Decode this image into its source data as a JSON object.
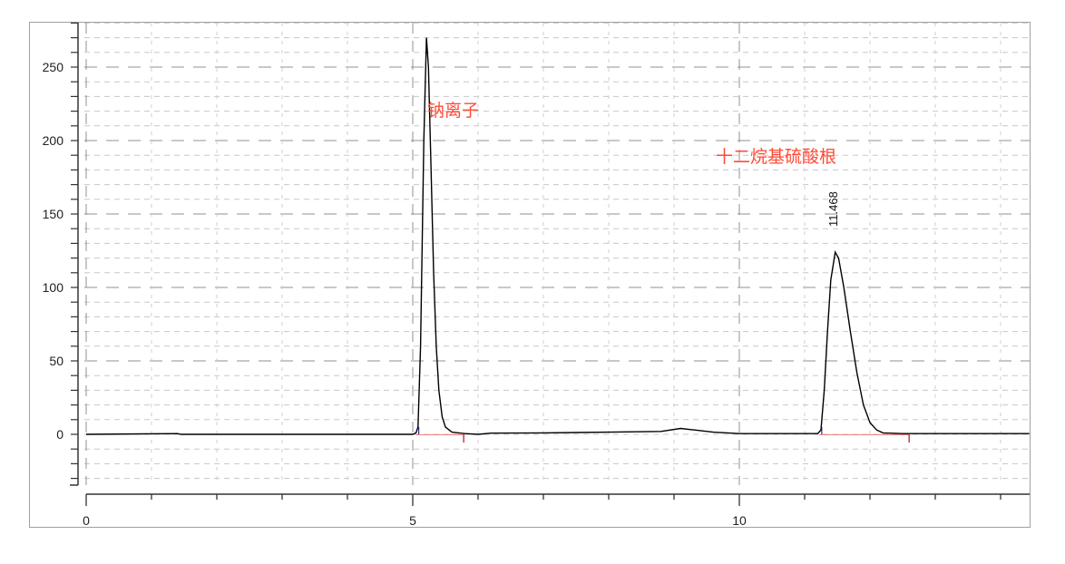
{
  "chart_data": {
    "type": "line",
    "title": "",
    "xlabel": "",
    "ylabel": "",
    "xlim": [
      0,
      14.44
    ],
    "ylim": [
      -34,
      280
    ],
    "x_ticks": [
      "0",
      "5",
      "10"
    ],
    "y_ticks": [
      "0",
      "50",
      "100",
      "150",
      "200",
      "250"
    ],
    "grid": true,
    "colors": {
      "trace": "#000000",
      "annotation": "#ff4a35",
      "baseline": "#f08080",
      "peak_start": "#2030a0",
      "peak_end": "#c0404a"
    },
    "series": [
      {
        "points": [
          [
            0,
            0
          ],
          [
            1.4,
            0.5
          ],
          [
            1.45,
            0
          ],
          [
            5.0,
            0
          ],
          [
            5.05,
            1
          ],
          [
            5.08,
            5
          ],
          [
            5.12,
            60
          ],
          [
            5.17,
            200
          ],
          [
            5.21,
            270
          ],
          [
            5.24,
            250
          ],
          [
            5.28,
            180
          ],
          [
            5.32,
            110
          ],
          [
            5.36,
            60
          ],
          [
            5.4,
            30
          ],
          [
            5.45,
            12
          ],
          [
            5.5,
            5
          ],
          [
            5.6,
            1.5
          ],
          [
            5.8,
            0.5
          ],
          [
            6.0,
            0
          ],
          [
            6.2,
            0.8
          ],
          [
            7,
            1
          ],
          [
            8,
            1.5
          ],
          [
            8.8,
            2
          ],
          [
            9.1,
            4
          ],
          [
            9.3,
            3
          ],
          [
            9.6,
            1.5
          ],
          [
            10,
            0.5
          ],
          [
            11.2,
            0.5
          ],
          [
            11.25,
            3
          ],
          [
            11.3,
            30
          ],
          [
            11.35,
            70
          ],
          [
            11.4,
            105
          ],
          [
            11.468,
            124
          ],
          [
            11.52,
            120
          ],
          [
            11.6,
            100
          ],
          [
            11.7,
            70
          ],
          [
            11.8,
            42
          ],
          [
            11.9,
            20
          ],
          [
            12.0,
            8
          ],
          [
            12.1,
            3
          ],
          [
            12.2,
            1
          ],
          [
            12.5,
            0.5
          ],
          [
            14.44,
            0.5
          ]
        ]
      }
    ],
    "peaks": [
      {
        "start": 5.05,
        "end": 5.78
      },
      {
        "start": 11.22,
        "end": 12.6,
        "retention_label": "11.468",
        "apex": [
          11.468,
          124
        ]
      }
    ],
    "annotations": [
      {
        "text": "钠离子",
        "x": 5.25,
        "y": 220
      },
      {
        "text": "十二烷基硫酸根",
        "x": 9.6,
        "y": 188
      }
    ]
  }
}
